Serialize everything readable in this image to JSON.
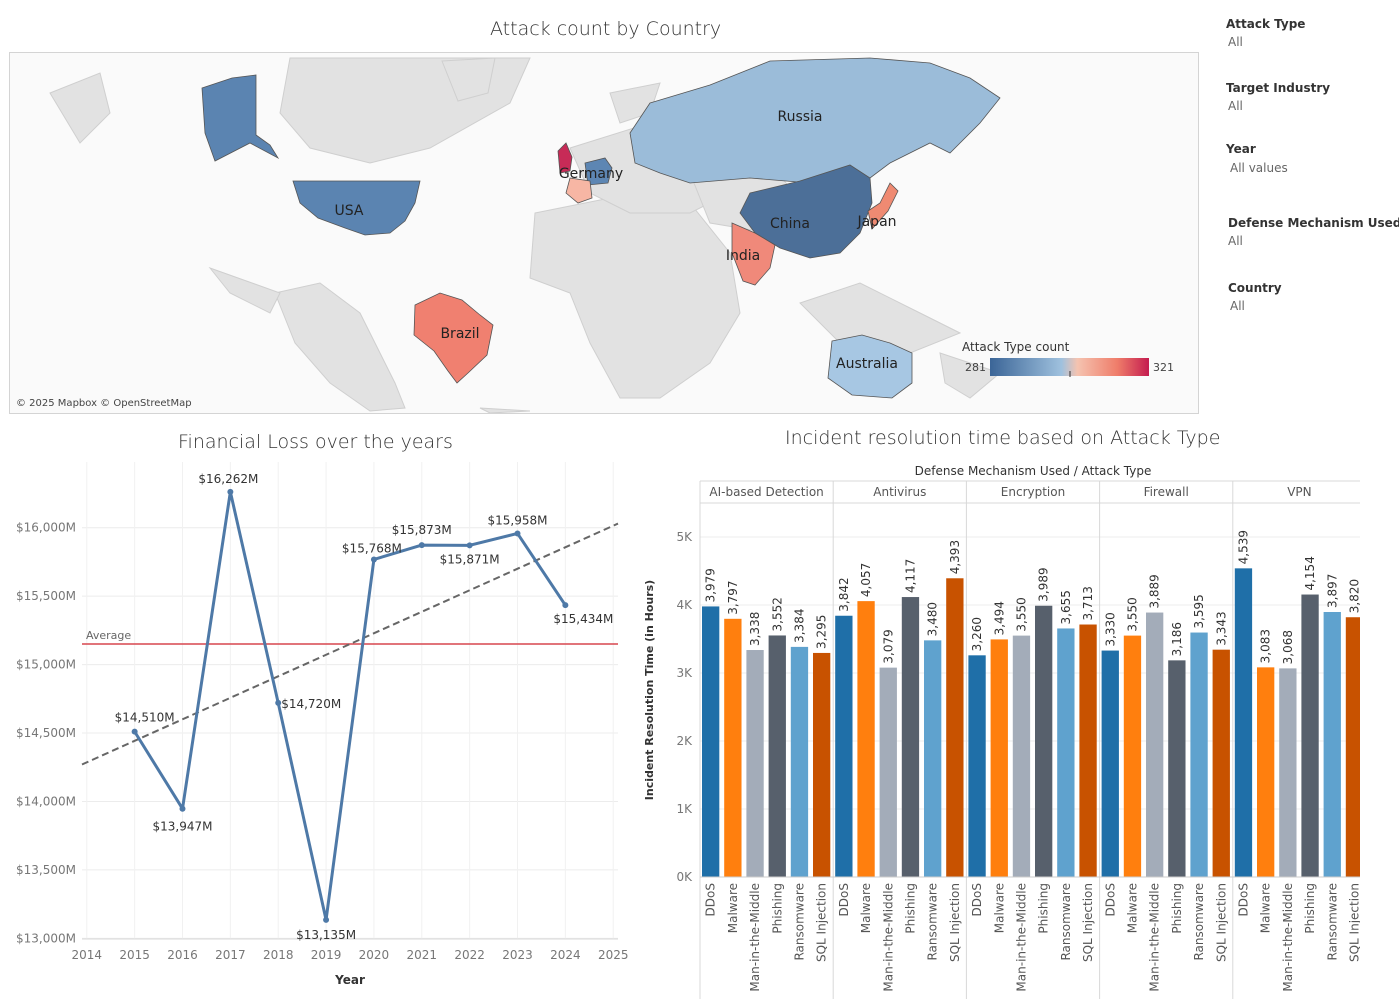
{
  "map": {
    "title": "Attack count by Country",
    "attribution": "© 2025 Mapbox © OpenStreetMap",
    "legend": {
      "title": "Attack Type count",
      "min": "281",
      "max": "321"
    },
    "countries": [
      {
        "name": "USA",
        "shade": "#4e79a7"
      },
      {
        "name": "Germany",
        "shade": "#5d86b3"
      },
      {
        "name": "China",
        "shade": "#4c6f98"
      },
      {
        "name": "Japan",
        "shade": "#ef8a72"
      },
      {
        "name": "India",
        "shade": "#f0897a"
      },
      {
        "name": "Brazil",
        "shade": "#f08070"
      },
      {
        "name": "Russia",
        "shade": "#9bbcd9"
      },
      {
        "name": "Australia",
        "shade": "#a7c7e3"
      }
    ]
  },
  "filters": [
    {
      "label": "Attack Type",
      "value": "All"
    },
    {
      "label": "Target Industry",
      "value": "All"
    },
    {
      "label": "Year",
      "value": "All values"
    },
    {
      "label": "Defense Mechanism Used",
      "value": "All"
    },
    {
      "label": "Country",
      "value": "All"
    }
  ],
  "chart_data": [
    {
      "type": "line",
      "title": "Financial Loss over the years",
      "xlabel": "Year",
      "ylabel": "",
      "x_ticks": [
        "2014",
        "2015",
        "2016",
        "2017",
        "2018",
        "2019",
        "2020",
        "2021",
        "2022",
        "2023",
        "2024",
        "2025"
      ],
      "x": [
        2015,
        2016,
        2017,
        2018,
        2019,
        2020,
        2021,
        2022,
        2023,
        2024
      ],
      "values": [
        14510,
        13947,
        16262,
        14720,
        13135,
        15768,
        15873,
        15871,
        15958,
        15434
      ],
      "labels": [
        "$14,510M",
        "$13,947M",
        "$16,262M",
        "$14,720M",
        "$13,135M",
        "$15,768M",
        "$15,873M",
        "$15,871M",
        "$15,958M",
        "$15,434M"
      ],
      "y_ticks": [
        "$13,000M",
        "$13,500M",
        "$14,000M",
        "$14,500M",
        "$15,000M",
        "$15,500M",
        "$16,000M"
      ],
      "ylim": [
        12995,
        16480
      ],
      "xlim": [
        2013.9,
        2025.1
      ],
      "reference_line": {
        "label": "Average",
        "value": 15150,
        "color": "#d7474f"
      },
      "trend_line": {
        "start": [
          2013.9,
          14270
        ],
        "end": [
          2025.1,
          16030
        ],
        "color": "#666666"
      },
      "line_color": "#4e79a7",
      "grid": true
    },
    {
      "type": "bar",
      "title": "Incident resolution time based on Attack Type",
      "header": "Defense Mechanism Used  /  Attack Type",
      "ylabel": "Incident Resolution Time (in Hours)",
      "y_ticks": [
        "0K",
        "1K",
        "2K",
        "3K",
        "4K",
        "5K"
      ],
      "ylim": [
        0,
        5500
      ],
      "categories": [
        "DDoS",
        "Malware",
        "Man-in-the-Middle",
        "Phishing",
        "Ransomware",
        "SQL Injection"
      ],
      "colors": [
        "#1f6fa8",
        "#ff7f0e",
        "#a3acb9",
        "#57606c",
        "#5fa2ce",
        "#c85200"
      ],
      "groups": [
        {
          "name": "AI-based Detection",
          "values": [
            3979,
            3797,
            3338,
            3552,
            3384,
            3295
          ],
          "labels": [
            "3,979",
            "3,797",
            "3,338",
            "3,552",
            "3,384",
            "3,295"
          ]
        },
        {
          "name": "Antivirus",
          "values": [
            3842,
            4057,
            3079,
            4117,
            3480,
            4393
          ],
          "labels": [
            "3,842",
            "4,057",
            "3,079",
            "4,117",
            "3,480",
            "4,393"
          ]
        },
        {
          "name": "Encryption",
          "values": [
            3260,
            3494,
            3550,
            3989,
            3655,
            3713
          ],
          "labels": [
            "3,260",
            "3,494",
            "3,550",
            "3,989",
            "3,655",
            "3,713"
          ]
        },
        {
          "name": "Firewall",
          "values": [
            3330,
            3550,
            3889,
            3186,
            3595,
            3343
          ],
          "labels": [
            "3,330",
            "3,550",
            "3,889",
            "3,186",
            "3,595",
            "3,343"
          ]
        },
        {
          "name": "VPN",
          "values": [
            4539,
            3083,
            3068,
            4154,
            3897,
            3820
          ],
          "labels": [
            "4,539",
            "3,083",
            "3,068",
            "4,154",
            "3,897",
            "3,820"
          ]
        }
      ]
    }
  ]
}
